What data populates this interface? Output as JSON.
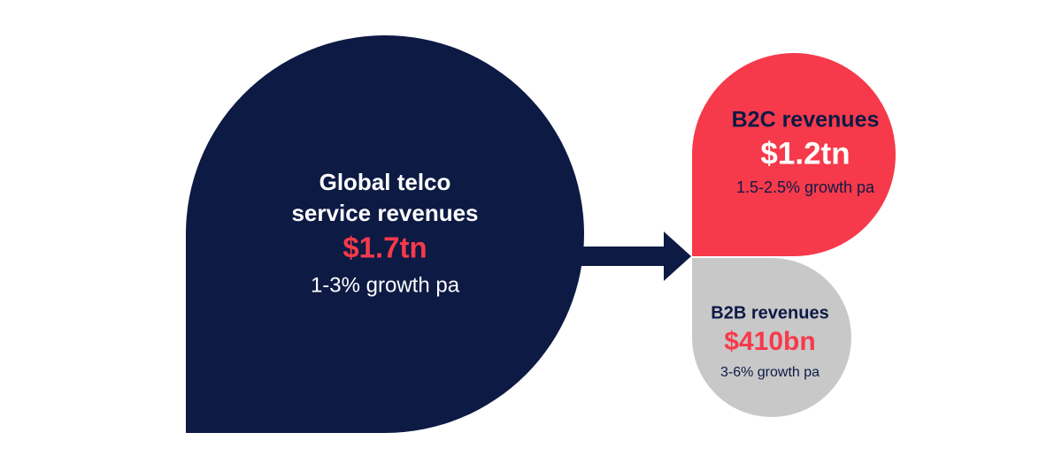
{
  "nodes": [
    {
      "title_lines": [
        "Global telco",
        "service revenues"
      ],
      "amount": "$1.7tn",
      "growth": "1-3% growth pa"
    },
    {
      "title_lines": [
        "B2C revenues"
      ],
      "amount": "$1.2tn",
      "growth": "1.5-2.5% growth pa"
    },
    {
      "title_lines": [
        "B2B revenues"
      ],
      "amount": "$410bn",
      "growth": "3-6% growth pa"
    }
  ]
}
